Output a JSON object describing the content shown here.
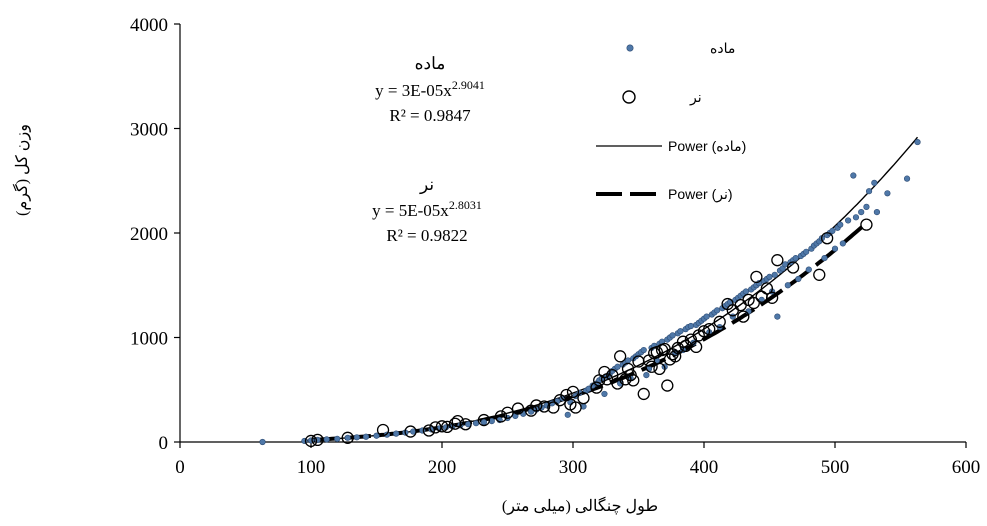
{
  "chart_data": {
    "type": "scatter",
    "xlabel": "طول چنگالی (میلی متر)",
    "ylabel": "وزن کل (گرم)",
    "xlim": [
      0,
      600
    ],
    "ylim": [
      0,
      4000
    ],
    "xticks": [
      "0",
      "100",
      "200",
      "300",
      "400",
      "500",
      "600"
    ],
    "yticks": [
      "0",
      "1000",
      "2000",
      "3000",
      "4000"
    ],
    "grid": false,
    "legend_position": "top-right",
    "legend": {
      "female_points": "ماده",
      "male_points": "نر",
      "female_fit": "Power (ماده)",
      "male_fit": "Power (نر)"
    },
    "annotations": {
      "female": {
        "title": "ماده",
        "eq_prefix": "y = 3E-05x",
        "eq_exp": "2.9041",
        "r2": "R² = 0.9847"
      },
      "male": {
        "title": "نر",
        "eq_prefix": "y = 5E-05x",
        "eq_exp": "2.8031",
        "r2": "R² = 0.9822"
      }
    },
    "series": [
      {
        "name": "ماده",
        "marker": "filled-dot",
        "color": "#4f78a8",
        "points": [
          [
            63,
            0
          ],
          [
            95,
            10
          ],
          [
            100,
            15
          ],
          [
            105,
            20
          ],
          [
            112,
            25
          ],
          [
            120,
            30
          ],
          [
            128,
            40
          ],
          [
            135,
            45
          ],
          [
            142,
            50
          ],
          [
            150,
            60
          ],
          [
            158,
            70
          ],
          [
            165,
            80
          ],
          [
            172,
            90
          ],
          [
            178,
            100
          ],
          [
            185,
            110
          ],
          [
            192,
            120
          ],
          [
            198,
            130
          ],
          [
            203,
            140
          ],
          [
            208,
            150
          ],
          [
            214,
            160
          ],
          [
            220,
            170
          ],
          [
            226,
            180
          ],
          [
            232,
            190
          ],
          [
            238,
            200
          ],
          [
            244,
            210
          ],
          [
            250,
            230
          ],
          [
            256,
            250
          ],
          [
            262,
            270
          ],
          [
            268,
            290
          ],
          [
            272,
            310
          ],
          [
            276,
            330
          ],
          [
            280,
            350
          ],
          [
            284,
            370
          ],
          [
            288,
            390
          ],
          [
            292,
            420
          ],
          [
            296,
            260
          ],
          [
            298,
            380
          ],
          [
            302,
            440
          ],
          [
            305,
            470
          ],
          [
            308,
            340
          ],
          [
            310,
            490
          ],
          [
            312,
            510
          ],
          [
            315,
            540
          ],
          [
            318,
            560
          ],
          [
            320,
            590
          ],
          [
            322,
            610
          ],
          [
            324,
            460
          ],
          [
            326,
            630
          ],
          [
            328,
            650
          ],
          [
            330,
            680
          ],
          [
            332,
            700
          ],
          [
            334,
            720
          ],
          [
            336,
            560
          ],
          [
            338,
            740
          ],
          [
            340,
            760
          ],
          [
            342,
            780
          ],
          [
            344,
            610
          ],
          [
            346,
            800
          ],
          [
            348,
            820
          ],
          [
            350,
            840
          ],
          [
            352,
            860
          ],
          [
            354,
            880
          ],
          [
            356,
            640
          ],
          [
            358,
            700
          ],
          [
            360,
            900
          ],
          [
            362,
            920
          ],
          [
            364,
            780
          ],
          [
            366,
            940
          ],
          [
            368,
            960
          ],
          [
            370,
            720
          ],
          [
            372,
            980
          ],
          [
            374,
            1000
          ],
          [
            376,
            1020
          ],
          [
            378,
            860
          ],
          [
            380,
            1040
          ],
          [
            382,
            1060
          ],
          [
            384,
            880
          ],
          [
            386,
            1080
          ],
          [
            388,
            1100
          ],
          [
            390,
            1110
          ],
          [
            392,
            950
          ],
          [
            394,
            1120
          ],
          [
            396,
            1140
          ],
          [
            398,
            1160
          ],
          [
            400,
            1180
          ],
          [
            402,
            1200
          ],
          [
            404,
            1050
          ],
          [
            406,
            1220
          ],
          [
            408,
            1240
          ],
          [
            410,
            1260
          ],
          [
            412,
            1100
          ],
          [
            414,
            1280
          ],
          [
            416,
            1300
          ],
          [
            418,
            1320
          ],
          [
            420,
            1340
          ],
          [
            422,
            1200
          ],
          [
            424,
            1360
          ],
          [
            426,
            1380
          ],
          [
            428,
            1400
          ],
          [
            430,
            1420
          ],
          [
            432,
            1440
          ],
          [
            434,
            1250
          ],
          [
            436,
            1460
          ],
          [
            438,
            1480
          ],
          [
            440,
            1500
          ],
          [
            442,
            1520
          ],
          [
            444,
            1360
          ],
          [
            446,
            1540
          ],
          [
            448,
            1560
          ],
          [
            450,
            1580
          ],
          [
            452,
            1440
          ],
          [
            454,
            1600
          ],
          [
            456,
            1200
          ],
          [
            458,
            1640
          ],
          [
            460,
            1660
          ],
          [
            462,
            1700
          ],
          [
            464,
            1500
          ],
          [
            466,
            1720
          ],
          [
            468,
            1740
          ],
          [
            470,
            1760
          ],
          [
            472,
            1560
          ],
          [
            474,
            1780
          ],
          [
            476,
            1800
          ],
          [
            478,
            1820
          ],
          [
            480,
            1650
          ],
          [
            482,
            1850
          ],
          [
            484,
            1880
          ],
          [
            486,
            1900
          ],
          [
            488,
            1920
          ],
          [
            490,
            1950
          ],
          [
            492,
            1760
          ],
          [
            494,
            1980
          ],
          [
            496,
            2000
          ],
          [
            498,
            2020
          ],
          [
            500,
            1850
          ],
          [
            502,
            2050
          ],
          [
            504,
            2080
          ],
          [
            506,
            1900
          ],
          [
            510,
            2120
          ],
          [
            514,
            2550
          ],
          [
            516,
            2150
          ],
          [
            520,
            2200
          ],
          [
            524,
            2250
          ],
          [
            526,
            2400
          ],
          [
            530,
            2480
          ],
          [
            532,
            2200
          ],
          [
            540,
            2380
          ],
          [
            555,
            2520
          ],
          [
            563,
            2870
          ]
        ]
      },
      {
        "name": "نر",
        "marker": "open-circle",
        "color": "#000000",
        "points": [
          [
            100,
            10
          ],
          [
            105,
            20
          ],
          [
            128,
            40
          ],
          [
            155,
            115
          ],
          [
            176,
            100
          ],
          [
            190,
            110
          ],
          [
            195,
            140
          ],
          [
            200,
            150
          ],
          [
            204,
            145
          ],
          [
            210,
            175
          ],
          [
            212,
            200
          ],
          [
            218,
            170
          ],
          [
            232,
            210
          ],
          [
            245,
            245
          ],
          [
            250,
            280
          ],
          [
            258,
            320
          ],
          [
            268,
            300
          ],
          [
            272,
            350
          ],
          [
            278,
            340
          ],
          [
            285,
            330
          ],
          [
            290,
            400
          ],
          [
            295,
            450
          ],
          [
            298,
            360
          ],
          [
            300,
            480
          ],
          [
            302,
            330
          ],
          [
            308,
            420
          ],
          [
            318,
            520
          ],
          [
            320,
            590
          ],
          [
            324,
            670
          ],
          [
            326,
            600
          ],
          [
            330,
            640
          ],
          [
            334,
            560
          ],
          [
            336,
            820
          ],
          [
            340,
            600
          ],
          [
            342,
            700
          ],
          [
            344,
            640
          ],
          [
            346,
            590
          ],
          [
            350,
            770
          ],
          [
            354,
            460
          ],
          [
            358,
            780
          ],
          [
            360,
            720
          ],
          [
            362,
            850
          ],
          [
            364,
            860
          ],
          [
            366,
            700
          ],
          [
            368,
            880
          ],
          [
            370,
            890
          ],
          [
            372,
            540
          ],
          [
            374,
            790
          ],
          [
            376,
            840
          ],
          [
            378,
            820
          ],
          [
            380,
            900
          ],
          [
            384,
            960
          ],
          [
            386,
            920
          ],
          [
            390,
            980
          ],
          [
            394,
            910
          ],
          [
            396,
            1020
          ],
          [
            400,
            1060
          ],
          [
            404,
            1080
          ],
          [
            412,
            1150
          ],
          [
            418,
            1320
          ],
          [
            422,
            1260
          ],
          [
            428,
            1310
          ],
          [
            430,
            1200
          ],
          [
            434,
            1360
          ],
          [
            438,
            1330
          ],
          [
            440,
            1580
          ],
          [
            444,
            1390
          ],
          [
            448,
            1470
          ],
          [
            452,
            1380
          ],
          [
            456,
            1740
          ],
          [
            468,
            1670
          ],
          [
            488,
            1600
          ],
          [
            494,
            1950
          ],
          [
            524,
            2080
          ]
        ]
      }
    ],
    "fits": [
      {
        "name": "Power (ماده)",
        "a": 3e-05,
        "b": 2.9041,
        "x_range": [
          95,
          563
        ],
        "style": "solid"
      },
      {
        "name": "Power (نر)",
        "a": 5e-05,
        "b": 2.8031,
        "x_range": [
          100,
          524
        ],
        "style": "dashed"
      }
    ]
  }
}
